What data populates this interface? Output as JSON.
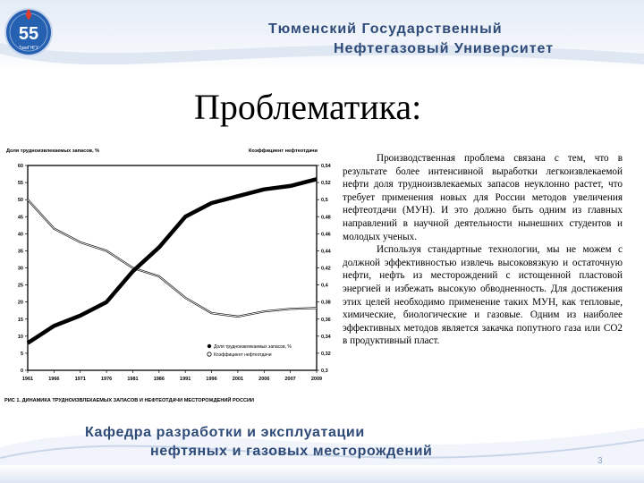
{
  "header": {
    "line1": "Тюменский Государственный",
    "line2": "Нефтегазовый Университет"
  },
  "logo": {
    "number": "55",
    "caption": "ТюмГНГУ",
    "icon": "university-logo-icon"
  },
  "title": "Проблематика:",
  "body": {
    "paragraph1": "Производственная проблема связана с тем, что в результате более интенсивной выработки легкоизвлекаемой нефти доля трудноизвлекаемых запасов неуклонно растет, что требует применения новых для России методов увеличения нефтеотдачи (МУН). И это должно быть одним из главных направлений в научной деятельности нынешних студентов и молодых ученых.",
    "paragraph2": "Используя стандартные технологии, мы не можем с должной эффективностью извлечь высоковязкую и остаточную нефти, нефть из месторождений с истощенной пластовой энергией и избежать высокую обводненность. Для достижения этих целей необходимо применение таких МУН, как тепловые, химические, биологические и газовые. Одним из наиболее эффективных методов является закачка попутного газа или СО2 в продуктивный пласт."
  },
  "footer": {
    "line1": "Кафедра разработки и эксплуатации",
    "line2": "нефтяных и газовых месторождений"
  },
  "page_number": "3",
  "colors": {
    "brand": "#2e4a78",
    "wave": "#c9d6ea"
  },
  "chart_data": {
    "type": "line",
    "title": "РИС 1. ДИНАМИКА ТРУДНОИЗВЛЕКАЕМЫХ ЗАПАСОВ И НЕФТЕОТДАЧИ МЕСТОРОЖДЕНИЙ РОССИИ",
    "ylabel_left": "Доля трудноизвлекаемых запасов, %",
    "ylabel_right": "Коэффициент нефтеотдачи",
    "x": [
      1961,
      1966,
      1971,
      1976,
      1981,
      1986,
      1991,
      1996,
      2001,
      2006,
      2007,
      2009
    ],
    "x_ticks": [
      "1961",
      "1966",
      "1971",
      "1976",
      "1981",
      "1986",
      "1991",
      "1996",
      "2001",
      "2006",
      "2007",
      "2009"
    ],
    "ylim_left": [
      0,
      60
    ],
    "yticks_left": [
      "0",
      "5",
      "10",
      "15",
      "20",
      "25",
      "30",
      "35",
      "40",
      "45",
      "50",
      "55",
      "60"
    ],
    "ylim_right": [
      0.3,
      0.54
    ],
    "yticks_right": [
      "0,3",
      "0,32",
      "0,34",
      "0,36",
      "0,38",
      "0,4",
      "0,42",
      "0,44",
      "0,46",
      "0,48",
      "0,5",
      "0,52",
      "0,54"
    ],
    "series": [
      {
        "name": "Доля трудноизвлекаемых запасов, %",
        "axis": "left",
        "values": [
          8,
          13,
          16,
          20,
          29,
          36,
          45,
          49,
          51,
          53,
          54,
          56
        ]
      },
      {
        "name": "Коэффициент нефтеотдачи",
        "axis": "right",
        "values": [
          0.5,
          0.466,
          0.45,
          0.44,
          0.42,
          0.41,
          0.385,
          0.367,
          0.363,
          0.369,
          0.372,
          0.373
        ]
      }
    ],
    "legend": "bottom-right",
    "grid": false
  }
}
